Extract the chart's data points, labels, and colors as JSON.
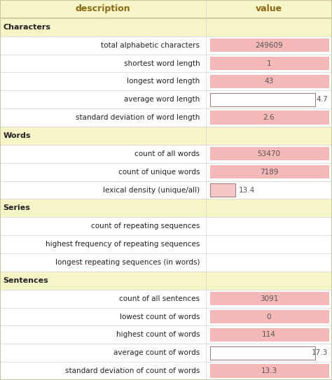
{
  "header": [
    "description",
    "value"
  ],
  "header_bg": "#f5f5c8",
  "header_text_color": "#8B6914",
  "section_bg": "#f5f5c8",
  "row_bg_white": "#ffffff",
  "row_bg_pink": "#f5b8b8",
  "pink_light": "#f5c8c8",
  "border_color": "#c8c8a0",
  "data_border_color": "#d0d0d0",
  "bar_border_color": "#a08080",
  "rows": [
    {
      "type": "section",
      "desc": "Characters",
      "value": "",
      "value_bg": "none"
    },
    {
      "type": "data",
      "desc": "total alphabetic characters",
      "value": "249609",
      "value_bg": "pink_full"
    },
    {
      "type": "data",
      "desc": "shortest word length",
      "value": "1",
      "value_bg": "pink_full"
    },
    {
      "type": "data",
      "desc": "longest word length",
      "value": "43",
      "value_bg": "pink_full"
    },
    {
      "type": "data",
      "desc": "average word length",
      "value": "4.7",
      "value_bg": "bar_outline"
    },
    {
      "type": "data",
      "desc": "standard deviation of word length",
      "value": "2.6",
      "value_bg": "pink_full"
    },
    {
      "type": "section",
      "desc": "Words",
      "value": "",
      "value_bg": "none"
    },
    {
      "type": "data",
      "desc": "count of all words",
      "value": "53470",
      "value_bg": "pink_full"
    },
    {
      "type": "data",
      "desc": "count of unique words",
      "value": "7189",
      "value_bg": "pink_full"
    },
    {
      "type": "data",
      "desc": "lexical density (unique/all)",
      "value": "13.4",
      "value_bg": "bar_small"
    },
    {
      "type": "section",
      "desc": "Series",
      "value": "",
      "value_bg": "none"
    },
    {
      "type": "data",
      "desc": "count of repeating sequences",
      "value": "",
      "value_bg": "white"
    },
    {
      "type": "data",
      "desc": "highest frequency of repeating sequences",
      "value": "",
      "value_bg": "white"
    },
    {
      "type": "data",
      "desc": "longest repeating sequences (in words)",
      "value": "",
      "value_bg": "white"
    },
    {
      "type": "section",
      "desc": "Sentences",
      "value": "",
      "value_bg": "none"
    },
    {
      "type": "data",
      "desc": "count of all sentences",
      "value": "3091",
      "value_bg": "pink_full"
    },
    {
      "type": "data",
      "desc": "lowest count of words",
      "value": "0",
      "value_bg": "pink_full"
    },
    {
      "type": "data",
      "desc": "highest count of words",
      "value": "114",
      "value_bg": "pink_full"
    },
    {
      "type": "data",
      "desc": "average count of words",
      "value": "17.3",
      "value_bg": "bar_outline"
    },
    {
      "type": "data",
      "desc": "standard deviation of count of words",
      "value": "13.3",
      "value_bg": "pink_full"
    }
  ],
  "col_split": 0.62,
  "fig_width": 4.74,
  "fig_height": 5.43,
  "dpi": 100
}
